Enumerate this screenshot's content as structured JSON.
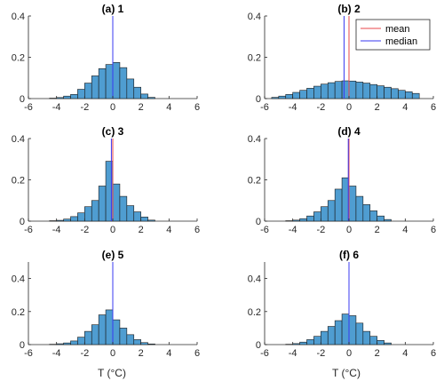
{
  "figure": {
    "xlabel": "T (°C)"
  },
  "legend": {
    "entries": [
      {
        "label": "mean",
        "color": "#e8474a"
      },
      {
        "label": "median",
        "color": "#3a3af0"
      }
    ]
  },
  "colors": {
    "bar_fill": "#4f9dd1",
    "bar_edge": "#1a1a1a",
    "axis": "#262626"
  },
  "chart_data": [
    {
      "type": "bar",
      "title": "(a) 1",
      "x": [
        -4.25,
        -3.75,
        -3.25,
        -2.75,
        -2.25,
        -1.75,
        -1.25,
        -0.75,
        -0.25,
        0.25,
        0.75,
        1.25,
        1.75,
        2.25,
        2.75
      ],
      "values": [
        0.002,
        0.005,
        0.012,
        0.02,
        0.045,
        0.075,
        0.11,
        0.145,
        0.165,
        0.175,
        0.15,
        0.095,
        0.055,
        0.022,
        0.006
      ],
      "mean": 0.0,
      "median": 0.0,
      "xlim": [
        -6,
        6
      ],
      "ylim": [
        0,
        0.4
      ],
      "xticks": [
        "-6",
        "-4",
        "-2",
        "0",
        "2",
        "4",
        "6"
      ],
      "yticks": [
        "0",
        "0.2",
        "0.4"
      ]
    },
    {
      "type": "bar",
      "title": "(b) 2",
      "x": [
        -5.25,
        -4.75,
        -4.25,
        -3.75,
        -3.25,
        -2.75,
        -2.25,
        -1.75,
        -1.25,
        -0.75,
        -0.25,
        0.25,
        0.75,
        1.25,
        1.75,
        2.25,
        2.75,
        3.25,
        3.75,
        4.25,
        4.75
      ],
      "values": [
        0.006,
        0.012,
        0.02,
        0.03,
        0.04,
        0.05,
        0.06,
        0.07,
        0.077,
        0.083,
        0.086,
        0.085,
        0.08,
        0.075,
        0.068,
        0.062,
        0.055,
        0.048,
        0.04,
        0.033,
        0.025
      ],
      "mean": 0.0,
      "median": -0.35,
      "xlim": [
        -6,
        6
      ],
      "ylim": [
        0,
        0.4
      ],
      "xticks": [
        "-6",
        "-4",
        "-2",
        "0",
        "2",
        "4",
        "6"
      ],
      "yticks": [
        "0",
        "0.2",
        "0.4"
      ]
    },
    {
      "type": "bar",
      "title": "(c) 3",
      "x": [
        -4.25,
        -3.75,
        -3.25,
        -2.75,
        -2.25,
        -1.75,
        -1.25,
        -0.75,
        -0.25,
        0.25,
        0.75,
        1.25,
        1.75,
        2.25,
        2.75
      ],
      "values": [
        0.002,
        0.004,
        0.01,
        0.022,
        0.04,
        0.07,
        0.1,
        0.17,
        0.29,
        0.18,
        0.12,
        0.075,
        0.045,
        0.02,
        0.005
      ],
      "mean": 0.0,
      "median": -0.1,
      "xlim": [
        -6,
        6
      ],
      "ylim": [
        0,
        0.4
      ],
      "xticks": [
        "-6",
        "-4",
        "-2",
        "0",
        "2",
        "4",
        "6"
      ],
      "yticks": [
        "0",
        "0.2",
        "0.4"
      ]
    },
    {
      "type": "bar",
      "title": "(d) 4",
      "x": [
        -4.25,
        -3.75,
        -3.25,
        -2.75,
        -2.25,
        -1.75,
        -1.25,
        -0.75,
        -0.25,
        0.25,
        0.75,
        1.25,
        1.75,
        2.25,
        2.75
      ],
      "values": [
        0.002,
        0.005,
        0.012,
        0.025,
        0.045,
        0.07,
        0.1,
        0.155,
        0.21,
        0.17,
        0.12,
        0.08,
        0.05,
        0.025,
        0.008
      ],
      "mean": 0.0,
      "median": -0.05,
      "xlim": [
        -6,
        6
      ],
      "ylim": [
        0,
        0.4
      ],
      "xticks": [
        "-6",
        "-4",
        "-2",
        "0",
        "2",
        "4",
        "6"
      ],
      "yticks": [
        "0",
        "0.2",
        "0.4"
      ]
    },
    {
      "type": "bar",
      "title": "(e) 5",
      "x": [
        -4.25,
        -3.75,
        -3.25,
        -2.75,
        -2.25,
        -1.75,
        -1.25,
        -0.75,
        -0.25,
        0.25,
        0.75,
        1.25,
        1.75,
        2.25,
        2.75
      ],
      "values": [
        0.002,
        0.005,
        0.01,
        0.022,
        0.045,
        0.08,
        0.12,
        0.18,
        0.21,
        0.15,
        0.1,
        0.06,
        0.03,
        0.012,
        0.004
      ],
      "mean": 0.0,
      "median": 0.0,
      "xlim": [
        -6,
        6
      ],
      "ylim": [
        0,
        0.5
      ],
      "xticks": [
        "-6",
        "-4",
        "-2",
        "0",
        "2",
        "4",
        "6"
      ],
      "yticks": [
        "0",
        "0.2",
        "0.4"
      ]
    },
    {
      "type": "bar",
      "title": "(f) 6",
      "x": [
        -4.25,
        -3.75,
        -3.25,
        -2.75,
        -2.25,
        -1.75,
        -1.25,
        -0.75,
        -0.25,
        0.25,
        0.75,
        1.25,
        1.75,
        2.25,
        2.75
      ],
      "values": [
        0.002,
        0.006,
        0.015,
        0.03,
        0.05,
        0.08,
        0.11,
        0.145,
        0.185,
        0.175,
        0.13,
        0.08,
        0.05,
        0.025,
        0.01
      ],
      "mean": 0.0,
      "median": 0.0,
      "xlim": [
        -6,
        6
      ],
      "ylim": [
        0,
        0.5
      ],
      "xticks": [
        "-6",
        "-4",
        "-2",
        "0",
        "2",
        "4",
        "6"
      ],
      "yticks": [
        "0",
        "0.2",
        "0.4"
      ]
    }
  ]
}
